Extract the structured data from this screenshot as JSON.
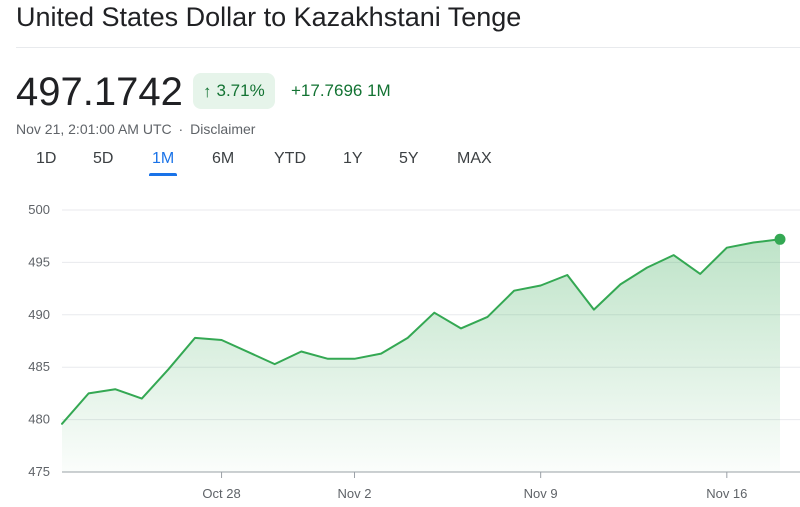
{
  "header": {
    "title": "United States Dollar to Kazakhstani Tenge"
  },
  "quote": {
    "price": "497.1742",
    "change_pct": "3.71%",
    "change_abs": "+17.7696 1M",
    "timestamp": "Nov 21, 2:01:00 AM UTC",
    "separator": "·",
    "disclaimer": "Disclaimer",
    "arrow_icon": "arrow-up-icon"
  },
  "colors": {
    "positive": "#137333",
    "positive_bg": "#e6f4ea",
    "line": "#34a853",
    "active_tab": "#1a73e8"
  },
  "tabs": [
    {
      "label": "1D",
      "active": false
    },
    {
      "label": "5D",
      "active": false
    },
    {
      "label": "1M",
      "active": true
    },
    {
      "label": "6M",
      "active": false
    },
    {
      "label": "YTD",
      "active": false
    },
    {
      "label": "1Y",
      "active": false
    },
    {
      "label": "5Y",
      "active": false
    },
    {
      "label": "MAX",
      "active": false
    }
  ],
  "chart_data": {
    "type": "area",
    "x_start": "Oct 22",
    "x_end": "Nov 21",
    "ylim": [
      475,
      500
    ],
    "yticks": [
      475,
      480,
      485,
      490,
      495,
      500
    ],
    "xtick_labels": [
      {
        "label": "Oct 28",
        "day": 6
      },
      {
        "label": "Nov 2",
        "day": 11
      },
      {
        "label": "Nov 9",
        "day": 18
      },
      {
        "label": "Nov 16",
        "day": 25
      }
    ],
    "grid": true,
    "end_marker": true,
    "points": [
      {
        "day": 0,
        "y": 479.6
      },
      {
        "day": 1,
        "y": 482.5
      },
      {
        "day": 2,
        "y": 482.9
      },
      {
        "day": 3,
        "y": 482.0
      },
      {
        "day": 4,
        "y": 484.8
      },
      {
        "day": 5,
        "y": 487.8
      },
      {
        "day": 6,
        "y": 487.6
      },
      {
        "day": 8,
        "y": 485.3
      },
      {
        "day": 9,
        "y": 486.5
      },
      {
        "day": 10,
        "y": 485.8
      },
      {
        "day": 11,
        "y": 485.8
      },
      {
        "day": 12,
        "y": 486.3
      },
      {
        "day": 13,
        "y": 487.8
      },
      {
        "day": 14,
        "y": 490.2
      },
      {
        "day": 15,
        "y": 488.7
      },
      {
        "day": 16,
        "y": 489.8
      },
      {
        "day": 17,
        "y": 492.3
      },
      {
        "day": 18,
        "y": 492.8
      },
      {
        "day": 19,
        "y": 493.8
      },
      {
        "day": 20,
        "y": 490.5
      },
      {
        "day": 21,
        "y": 492.9
      },
      {
        "day": 22,
        "y": 494.5
      },
      {
        "day": 23,
        "y": 495.7
      },
      {
        "day": 24,
        "y": 493.9
      },
      {
        "day": 25,
        "y": 496.4
      },
      {
        "day": 26,
        "y": 496.9
      },
      {
        "day": 27,
        "y": 497.2
      }
    ]
  }
}
